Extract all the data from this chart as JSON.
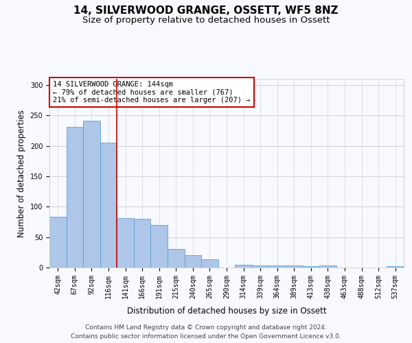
{
  "title": "14, SILVERWOOD GRANGE, OSSETT, WF5 8NZ",
  "subtitle": "Size of property relative to detached houses in Ossett",
  "xlabel": "Distribution of detached houses by size in Ossett",
  "ylabel": "Number of detached properties",
  "categories": [
    "42sqm",
    "67sqm",
    "92sqm",
    "116sqm",
    "141sqm",
    "166sqm",
    "191sqm",
    "215sqm",
    "240sqm",
    "265sqm",
    "290sqm",
    "314sqm",
    "339sqm",
    "364sqm",
    "389sqm",
    "413sqm",
    "438sqm",
    "463sqm",
    "488sqm",
    "512sqm",
    "537sqm"
  ],
  "values": [
    83,
    231,
    241,
    205,
    81,
    80,
    70,
    30,
    20,
    14,
    0,
    5,
    3,
    3,
    3,
    2,
    3,
    0,
    0,
    0,
    2
  ],
  "bar_color": "#aec6e8",
  "bar_edge_color": "#5a9fd4",
  "vline_x": 3.5,
  "vline_color": "#cc0000",
  "annotation_text": "14 SILVERWOOD GRANGE: 144sqm\n← 79% of detached houses are smaller (767)\n21% of semi-detached houses are larger (207) →",
  "annotation_box_color": "#ffffff",
  "annotation_box_edge": "#cc0000",
  "ylim": [
    0,
    310
  ],
  "yticks": [
    0,
    50,
    100,
    150,
    200,
    250,
    300
  ],
  "footer_text": "Contains HM Land Registry data © Crown copyright and database right 2024.\nContains public sector information licensed under the Open Government Licence v3.0.",
  "bg_color": "#f8f9ff",
  "grid_color": "#cccccc",
  "title_fontsize": 11,
  "subtitle_fontsize": 9.5,
  "axis_label_fontsize": 8.5,
  "tick_fontsize": 7,
  "footer_fontsize": 6.5,
  "annotation_fontsize": 7.5
}
